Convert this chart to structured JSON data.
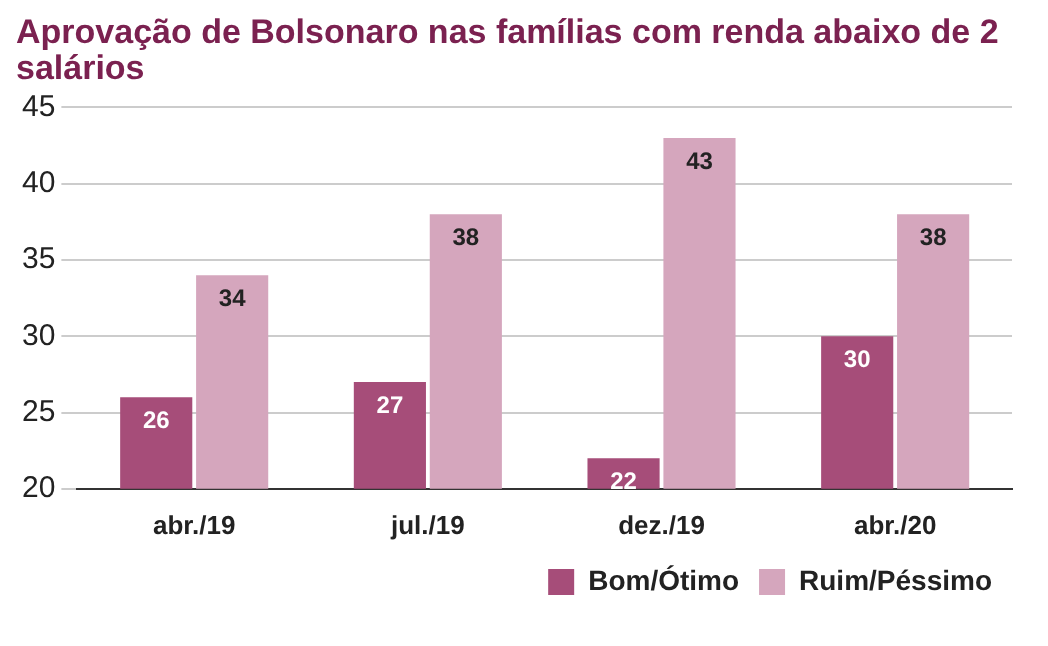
{
  "chart_data": {
    "type": "bar",
    "title": "Aprovação de Bolsonaro nas famílias com renda abaixo de 2 salários",
    "categories": [
      "abr./19",
      "jul./19",
      "dez./19",
      "abr./20"
    ],
    "series": [
      {
        "name": "Bom/Ótimo",
        "color": "#a64d79",
        "values": [
          26,
          27,
          22,
          30
        ]
      },
      {
        "name": "Ruim/Péssimo",
        "color": "#d5a6bd",
        "values": [
          34,
          38,
          43,
          38
        ]
      }
    ],
    "ylim": [
      20,
      45
    ],
    "yticks": [
      20,
      25,
      30,
      35,
      40,
      45
    ],
    "grid": "y",
    "legend": "bottom right",
    "data_labels": true
  }
}
